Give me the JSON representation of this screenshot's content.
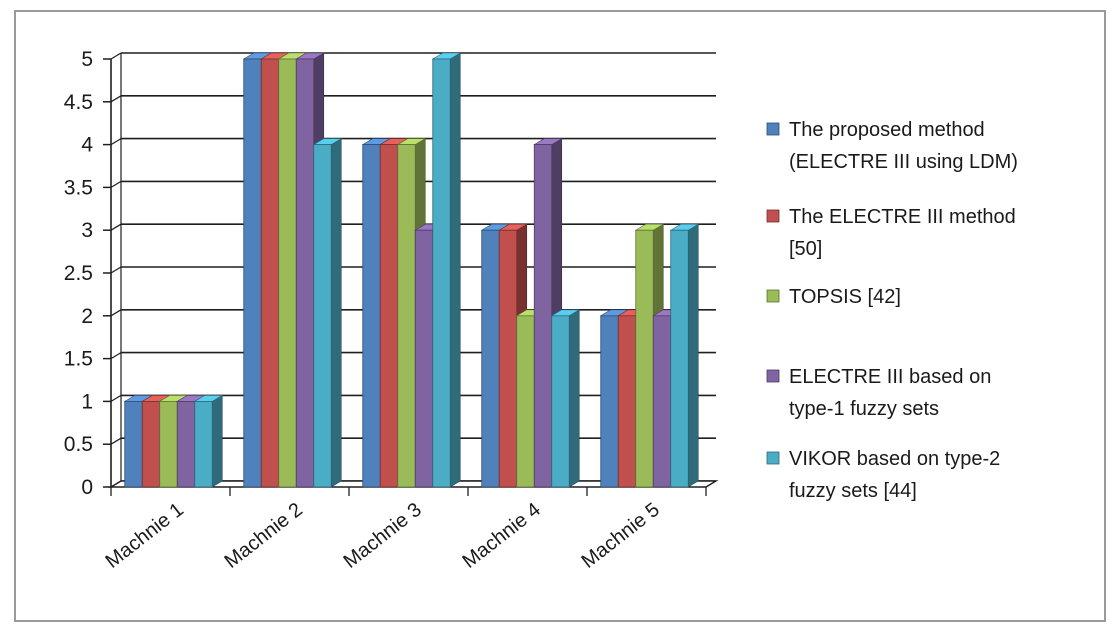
{
  "chart_data": {
    "type": "bar",
    "style": "3d-clustered-column",
    "categories": [
      "Machnie 1",
      "Machnie 2",
      "Machnie 3",
      "Machnie 4",
      "Machnie 5"
    ],
    "series": [
      {
        "name": "The proposed method (ELECTRE III using LDM)",
        "legend_lines": [
          "The proposed method",
          "(ELECTRE III using LDM)"
        ],
        "color": "#4f81bd",
        "values": [
          1,
          5,
          4,
          3,
          2
        ]
      },
      {
        "name": "The ELECTRE III method [50]",
        "legend_lines": [
          "The ELECTRE III method",
          "[50]"
        ],
        "color": "#c0504d",
        "values": [
          1,
          5,
          4,
          3,
          2
        ]
      },
      {
        "name": "TOPSIS [42]",
        "legend_lines": [
          "TOPSIS [42]"
        ],
        "color": "#9bbb59",
        "values": [
          1,
          5,
          4,
          2,
          3
        ]
      },
      {
        "name": "ELECTRE III based on type-1 fuzzy sets",
        "legend_lines": [
          "ELECTRE III based on",
          "type-1 fuzzy sets"
        ],
        "color": "#8064a2",
        "values": [
          1,
          5,
          3,
          4,
          2
        ]
      },
      {
        "name": "VIKOR based on type-2 fuzzy sets [44]",
        "legend_lines": [
          "VIKOR based on  type-2",
          "fuzzy sets [44]"
        ],
        "color": "#4bacc6",
        "values": [
          1,
          4,
          5,
          2,
          3
        ]
      }
    ],
    "yticks": [
      "0",
      "0.5",
      "1",
      "1.5",
      "2",
      "2.5",
      "3",
      "3.5",
      "4",
      "4.5",
      "5"
    ],
    "ylim": [
      0,
      5
    ],
    "title": "",
    "xlabel": "",
    "ylabel": "",
    "grid": "horizontal",
    "legend_position": "right"
  }
}
